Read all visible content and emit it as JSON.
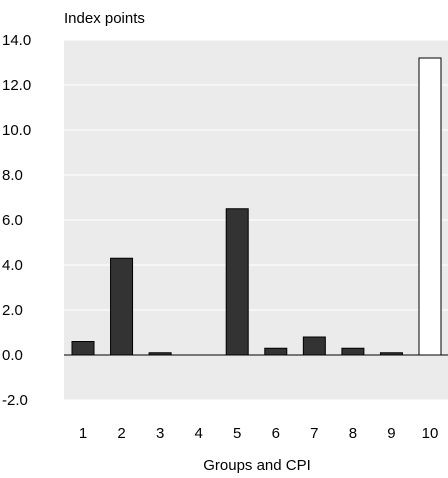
{
  "chart_data": {
    "type": "bar",
    "ylabel": "Index points",
    "xlabel": "Groups and CPI",
    "categories": [
      "1",
      "2",
      "3",
      "4",
      "5",
      "6",
      "7",
      "8",
      "9",
      "10"
    ],
    "values": [
      0.6,
      4.3,
      0.1,
      0.0,
      6.5,
      0.3,
      0.8,
      0.3,
      0.1,
      13.2
    ],
    "ylim": [
      -2.0,
      14.0
    ],
    "yticks": [
      "-2.0",
      "0.0",
      "2.0",
      "4.0",
      "6.0",
      "8.0",
      "10.0",
      "12.0",
      "14.0"
    ],
    "grid": true,
    "plot_background": "#ebebeb",
    "gridline_color": "#ffffff",
    "bar_colors": [
      "#333333",
      "#333333",
      "#333333",
      "#333333",
      "#333333",
      "#333333",
      "#333333",
      "#333333",
      "#333333",
      "#ffffff"
    ],
    "bar_outline": "#000000"
  }
}
